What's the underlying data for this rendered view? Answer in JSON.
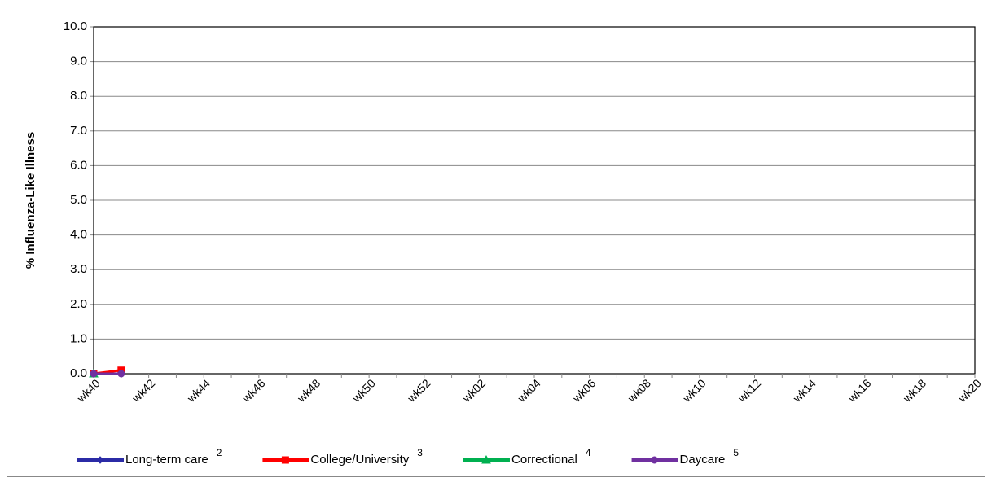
{
  "chart_data": {
    "type": "line",
    "y_label": "% Influenza-Like Illness",
    "categories": [
      "wk40",
      null,
      "wk42",
      null,
      "wk44",
      null,
      "wk46",
      null,
      "wk48",
      null,
      "wk50",
      null,
      "wk52",
      null,
      "wk02",
      null,
      "wk04",
      null,
      "wk06",
      null,
      "wk08",
      null,
      "wk10",
      null,
      "wk12",
      null,
      "wk14",
      null,
      "wk16",
      null,
      "wk18",
      null,
      "wk20"
    ],
    "series": [
      {
        "name": "Long-term care",
        "footnote": "2",
        "color": "#2b2ba6",
        "marker": "diamond",
        "values": [
          0.0,
          0.0,
          null,
          null,
          null,
          null,
          null,
          null,
          null,
          null,
          null,
          null,
          null,
          null,
          null,
          null,
          null,
          null,
          null,
          null,
          null,
          null,
          null,
          null,
          null,
          null,
          null,
          null,
          null,
          null,
          null,
          null,
          null
        ]
      },
      {
        "name": "College/University",
        "footnote": "3",
        "color": "#ff0000",
        "marker": "square",
        "values": [
          0.0,
          0.1,
          null,
          null,
          null,
          null,
          null,
          null,
          null,
          null,
          null,
          null,
          null,
          null,
          null,
          null,
          null,
          null,
          null,
          null,
          null,
          null,
          null,
          null,
          null,
          null,
          null,
          null,
          null,
          null,
          null,
          null,
          null
        ]
      },
      {
        "name": "Correctional",
        "footnote": "4",
        "color": "#00b050",
        "marker": "triangle",
        "values": [
          0.0,
          null,
          null,
          null,
          null,
          null,
          null,
          null,
          null,
          null,
          null,
          null,
          null,
          null,
          null,
          null,
          null,
          null,
          null,
          null,
          null,
          null,
          null,
          null,
          null,
          null,
          null,
          null,
          null,
          null,
          null,
          null,
          null
        ]
      },
      {
        "name": "Daycare",
        "footnote": "5",
        "color": "#7030a0",
        "marker": "circle",
        "values": [
          0.0,
          0.0,
          null,
          null,
          null,
          null,
          null,
          null,
          null,
          null,
          null,
          null,
          null,
          null,
          null,
          null,
          null,
          null,
          null,
          null,
          null,
          null,
          null,
          null,
          null,
          null,
          null,
          null,
          null,
          null,
          null,
          null,
          null
        ]
      }
    ],
    "ylim": [
      0,
      10
    ],
    "yticks": [
      {
        "value": 0,
        "label": "0.0"
      },
      {
        "value": 1,
        "label": "1.0"
      },
      {
        "value": 2,
        "label": "2.0"
      },
      {
        "value": 3,
        "label": "3.0"
      },
      {
        "value": 4,
        "label": "4.0"
      },
      {
        "value": 5,
        "label": "5.0"
      },
      {
        "value": 6,
        "label": "6.0"
      },
      {
        "value": 7,
        "label": "7.0"
      },
      {
        "value": 8,
        "label": "8.0"
      },
      {
        "value": 9,
        "label": "9.0"
      },
      {
        "value": 10,
        "label": "10.0"
      }
    ],
    "grid": true,
    "legend": "bottom"
  }
}
